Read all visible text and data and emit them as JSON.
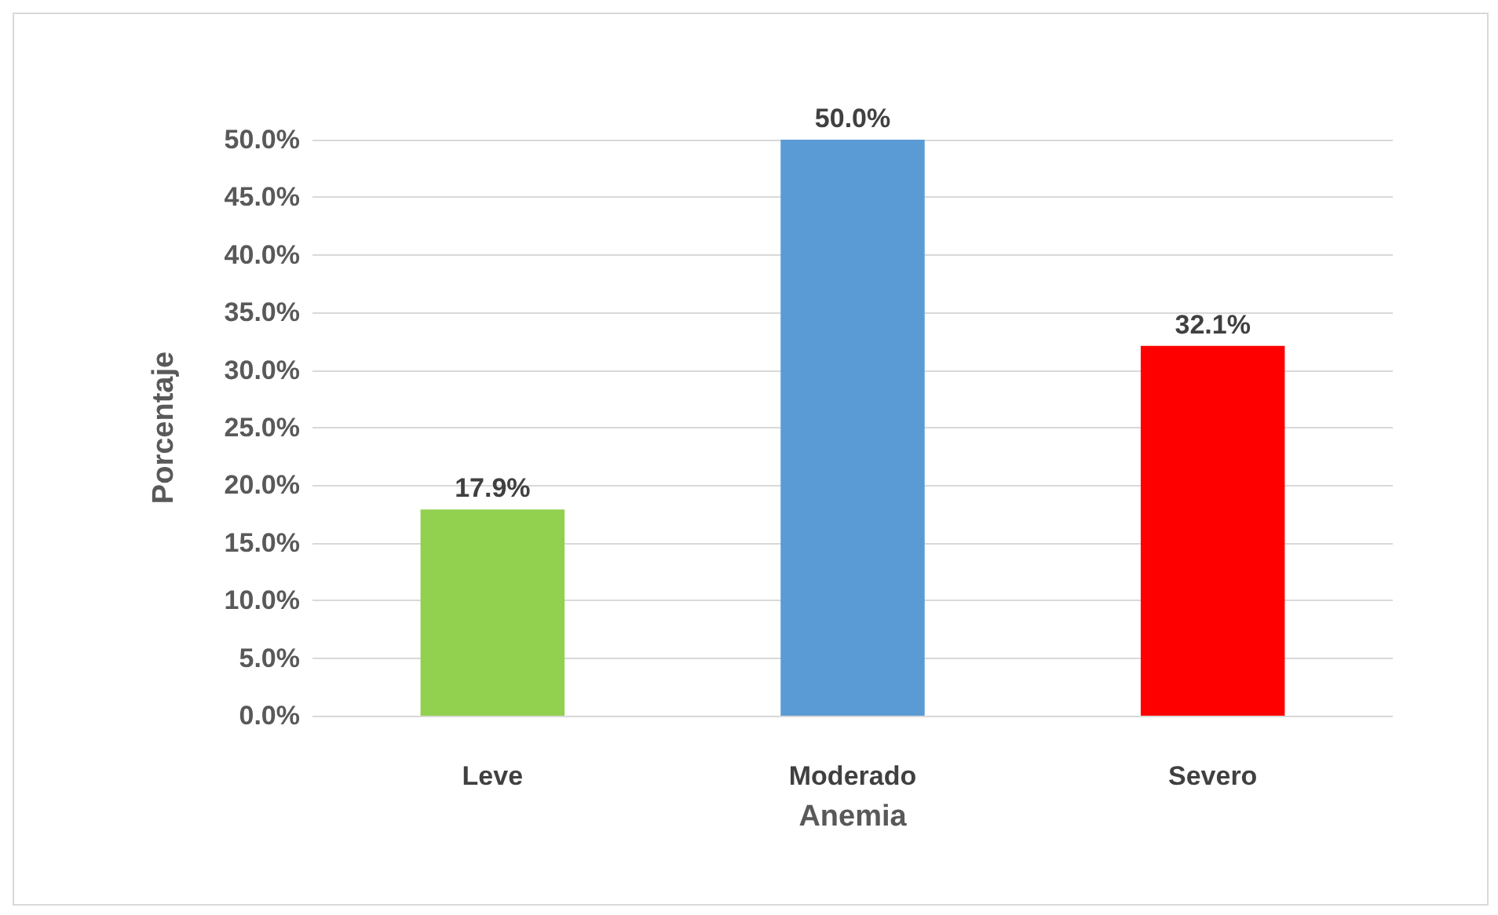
{
  "chart_data": {
    "type": "bar",
    "xlabel": "Anemia",
    "ylabel": "Porcentaje",
    "categories": [
      "Leve",
      "Moderado",
      "Severo"
    ],
    "values": [
      17.9,
      50.0,
      32.1
    ],
    "colors": [
      "#92d050",
      "#5b9bd5",
      "#ff0000"
    ],
    "value_labels": [
      "17.9%",
      "50.0%",
      "32.1%"
    ],
    "ylim": [
      0,
      50
    ],
    "yticks": [
      {
        "value": 0,
        "label": "0.0%"
      },
      {
        "value": 5,
        "label": "5.0%"
      },
      {
        "value": 10,
        "label": "10.0%"
      },
      {
        "value": 15,
        "label": "15.0%"
      },
      {
        "value": 20,
        "label": "20.0%"
      },
      {
        "value": 25,
        "label": "25.0%"
      },
      {
        "value": 30,
        "label": "30.0%"
      },
      {
        "value": 35,
        "label": "35.0%"
      },
      {
        "value": 40,
        "label": "40.0%"
      },
      {
        "value": 45,
        "label": "45.0%"
      },
      {
        "value": 50,
        "label": "50.0%"
      }
    ],
    "grid": "y"
  }
}
